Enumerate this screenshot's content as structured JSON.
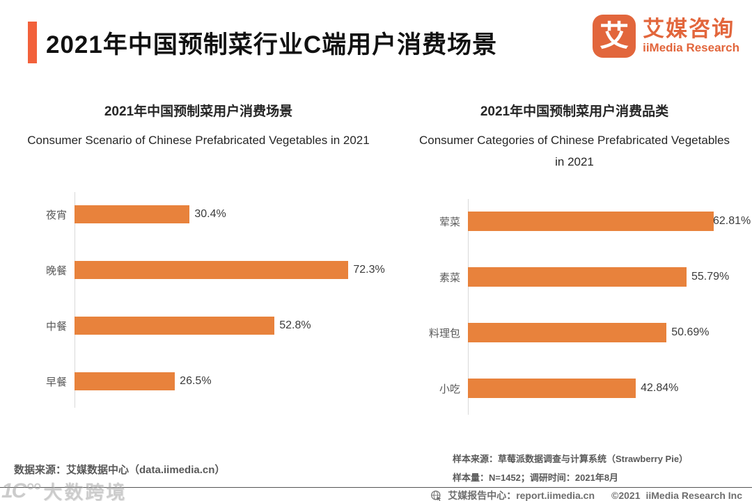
{
  "header": {
    "title": "2021年中国预制菜行业C端用户消费场景",
    "logo": {
      "icon_char": "艾",
      "name_cn": "艾媒咨询",
      "name_en": "iiMedia Research"
    }
  },
  "colors": {
    "accent": "#F2613B",
    "logo_orange": "#E2663C",
    "bar_orange": "#E8823C",
    "label_gray": "#595959",
    "axis_gray": "#D9D9D9"
  },
  "chart_data": [
    {
      "type": "bar",
      "orientation": "horizontal",
      "title": "2021年中国预制菜用户消费场景",
      "subtitle_en": "Consumer Scenario of Chinese Prefabricated Vegetables in 2021",
      "categories": [
        "夜宵",
        "晚餐",
        "中餐",
        "早餐"
      ],
      "values": [
        30.4,
        72.3,
        52.8,
        26.5
      ],
      "value_labels": [
        "30.4%",
        "72.3%",
        "52.8%",
        "26.5%"
      ],
      "unit": "%",
      "xlim": [
        0,
        84
      ],
      "bar_color": "#E8823C",
      "grid": false,
      "legend_position": "none"
    },
    {
      "type": "bar",
      "orientation": "horizontal",
      "title": "2021年中国预制菜用户消费品类",
      "subtitle_en": "Consumer Categories of Chinese Prefabricated Vegetables in 2021",
      "categories": [
        "荤菜",
        "素菜",
        "料理包",
        "小吃"
      ],
      "values": [
        62.81,
        55.79,
        50.69,
        42.84
      ],
      "value_labels": [
        "62.81%",
        "55.79%",
        "50.69%",
        "42.84%"
      ],
      "unit": "%",
      "xlim": [
        0,
        72.5
      ],
      "bar_color": "#E8823C",
      "grid": false,
      "legend_position": "none"
    }
  ],
  "footer": {
    "data_source": "数据来源：艾媒数据中心（data.iimedia.cn）",
    "sample_source": "样本来源：草莓派数据调查与计算系统（Strawberry Pie）",
    "sample_size": "样本量：N=1452；调研时间：2021年8月",
    "report_center": "艾媒报告中心：report.iimedia.cn",
    "copyright": "©2021",
    "company": "iiMedia Research  Inc"
  },
  "watermark": {
    "mark": "1C°°",
    "text": "大数跨境"
  }
}
